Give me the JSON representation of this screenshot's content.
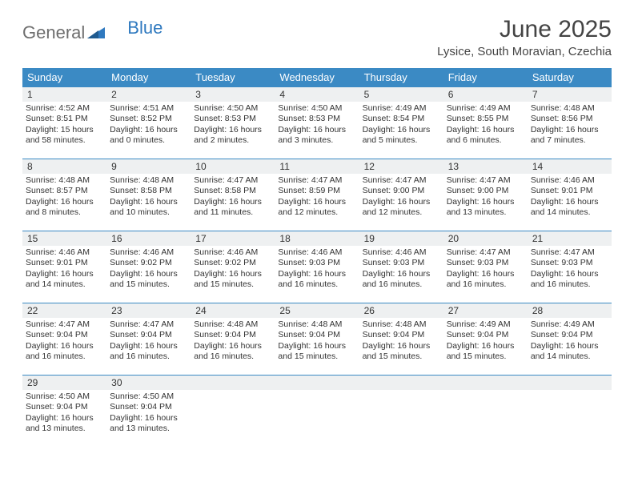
{
  "brand": {
    "general": "General",
    "blue": "Blue"
  },
  "title": "June 2025",
  "subtitle": "Lysice, South Moravian, Czechia",
  "colors": {
    "header_bg": "#3b8ac4",
    "header_text": "#ffffff",
    "daynum_bg": "#eef0f1",
    "border": "#3b8ac4",
    "text": "#333333",
    "logo_gray": "#6e6e6e",
    "logo_blue": "#2f79bf",
    "page_bg": "#ffffff"
  },
  "fonts": {
    "title_size_pt": 22,
    "subtitle_size_pt": 11,
    "header_size_pt": 10,
    "daynum_size_pt": 9,
    "body_size_pt": 8
  },
  "weekdays": [
    "Sunday",
    "Monday",
    "Tuesday",
    "Wednesday",
    "Thursday",
    "Friday",
    "Saturday"
  ],
  "weeks": [
    [
      {
        "n": "1",
        "sr": "Sunrise: 4:52 AM",
        "ss": "Sunset: 8:51 PM",
        "d1": "Daylight: 15 hours",
        "d2": "and 58 minutes."
      },
      {
        "n": "2",
        "sr": "Sunrise: 4:51 AM",
        "ss": "Sunset: 8:52 PM",
        "d1": "Daylight: 16 hours",
        "d2": "and 0 minutes."
      },
      {
        "n": "3",
        "sr": "Sunrise: 4:50 AM",
        "ss": "Sunset: 8:53 PM",
        "d1": "Daylight: 16 hours",
        "d2": "and 2 minutes."
      },
      {
        "n": "4",
        "sr": "Sunrise: 4:50 AM",
        "ss": "Sunset: 8:53 PM",
        "d1": "Daylight: 16 hours",
        "d2": "and 3 minutes."
      },
      {
        "n": "5",
        "sr": "Sunrise: 4:49 AM",
        "ss": "Sunset: 8:54 PM",
        "d1": "Daylight: 16 hours",
        "d2": "and 5 minutes."
      },
      {
        "n": "6",
        "sr": "Sunrise: 4:49 AM",
        "ss": "Sunset: 8:55 PM",
        "d1": "Daylight: 16 hours",
        "d2": "and 6 minutes."
      },
      {
        "n": "7",
        "sr": "Sunrise: 4:48 AM",
        "ss": "Sunset: 8:56 PM",
        "d1": "Daylight: 16 hours",
        "d2": "and 7 minutes."
      }
    ],
    [
      {
        "n": "8",
        "sr": "Sunrise: 4:48 AM",
        "ss": "Sunset: 8:57 PM",
        "d1": "Daylight: 16 hours",
        "d2": "and 8 minutes."
      },
      {
        "n": "9",
        "sr": "Sunrise: 4:48 AM",
        "ss": "Sunset: 8:58 PM",
        "d1": "Daylight: 16 hours",
        "d2": "and 10 minutes."
      },
      {
        "n": "10",
        "sr": "Sunrise: 4:47 AM",
        "ss": "Sunset: 8:58 PM",
        "d1": "Daylight: 16 hours",
        "d2": "and 11 minutes."
      },
      {
        "n": "11",
        "sr": "Sunrise: 4:47 AM",
        "ss": "Sunset: 8:59 PM",
        "d1": "Daylight: 16 hours",
        "d2": "and 12 minutes."
      },
      {
        "n": "12",
        "sr": "Sunrise: 4:47 AM",
        "ss": "Sunset: 9:00 PM",
        "d1": "Daylight: 16 hours",
        "d2": "and 12 minutes."
      },
      {
        "n": "13",
        "sr": "Sunrise: 4:47 AM",
        "ss": "Sunset: 9:00 PM",
        "d1": "Daylight: 16 hours",
        "d2": "and 13 minutes."
      },
      {
        "n": "14",
        "sr": "Sunrise: 4:46 AM",
        "ss": "Sunset: 9:01 PM",
        "d1": "Daylight: 16 hours",
        "d2": "and 14 minutes."
      }
    ],
    [
      {
        "n": "15",
        "sr": "Sunrise: 4:46 AM",
        "ss": "Sunset: 9:01 PM",
        "d1": "Daylight: 16 hours",
        "d2": "and 14 minutes."
      },
      {
        "n": "16",
        "sr": "Sunrise: 4:46 AM",
        "ss": "Sunset: 9:02 PM",
        "d1": "Daylight: 16 hours",
        "d2": "and 15 minutes."
      },
      {
        "n": "17",
        "sr": "Sunrise: 4:46 AM",
        "ss": "Sunset: 9:02 PM",
        "d1": "Daylight: 16 hours",
        "d2": "and 15 minutes."
      },
      {
        "n": "18",
        "sr": "Sunrise: 4:46 AM",
        "ss": "Sunset: 9:03 PM",
        "d1": "Daylight: 16 hours",
        "d2": "and 16 minutes."
      },
      {
        "n": "19",
        "sr": "Sunrise: 4:46 AM",
        "ss": "Sunset: 9:03 PM",
        "d1": "Daylight: 16 hours",
        "d2": "and 16 minutes."
      },
      {
        "n": "20",
        "sr": "Sunrise: 4:47 AM",
        "ss": "Sunset: 9:03 PM",
        "d1": "Daylight: 16 hours",
        "d2": "and 16 minutes."
      },
      {
        "n": "21",
        "sr": "Sunrise: 4:47 AM",
        "ss": "Sunset: 9:03 PM",
        "d1": "Daylight: 16 hours",
        "d2": "and 16 minutes."
      }
    ],
    [
      {
        "n": "22",
        "sr": "Sunrise: 4:47 AM",
        "ss": "Sunset: 9:04 PM",
        "d1": "Daylight: 16 hours",
        "d2": "and 16 minutes."
      },
      {
        "n": "23",
        "sr": "Sunrise: 4:47 AM",
        "ss": "Sunset: 9:04 PM",
        "d1": "Daylight: 16 hours",
        "d2": "and 16 minutes."
      },
      {
        "n": "24",
        "sr": "Sunrise: 4:48 AM",
        "ss": "Sunset: 9:04 PM",
        "d1": "Daylight: 16 hours",
        "d2": "and 16 minutes."
      },
      {
        "n": "25",
        "sr": "Sunrise: 4:48 AM",
        "ss": "Sunset: 9:04 PM",
        "d1": "Daylight: 16 hours",
        "d2": "and 15 minutes."
      },
      {
        "n": "26",
        "sr": "Sunrise: 4:48 AM",
        "ss": "Sunset: 9:04 PM",
        "d1": "Daylight: 16 hours",
        "d2": "and 15 minutes."
      },
      {
        "n": "27",
        "sr": "Sunrise: 4:49 AM",
        "ss": "Sunset: 9:04 PM",
        "d1": "Daylight: 16 hours",
        "d2": "and 15 minutes."
      },
      {
        "n": "28",
        "sr": "Sunrise: 4:49 AM",
        "ss": "Sunset: 9:04 PM",
        "d1": "Daylight: 16 hours",
        "d2": "and 14 minutes."
      }
    ],
    [
      {
        "n": "29",
        "sr": "Sunrise: 4:50 AM",
        "ss": "Sunset: 9:04 PM",
        "d1": "Daylight: 16 hours",
        "d2": "and 13 minutes."
      },
      {
        "n": "30",
        "sr": "Sunrise: 4:50 AM",
        "ss": "Sunset: 9:04 PM",
        "d1": "Daylight: 16 hours",
        "d2": "and 13 minutes."
      },
      {
        "empty": true
      },
      {
        "empty": true
      },
      {
        "empty": true
      },
      {
        "empty": true
      },
      {
        "empty": true
      }
    ]
  ]
}
